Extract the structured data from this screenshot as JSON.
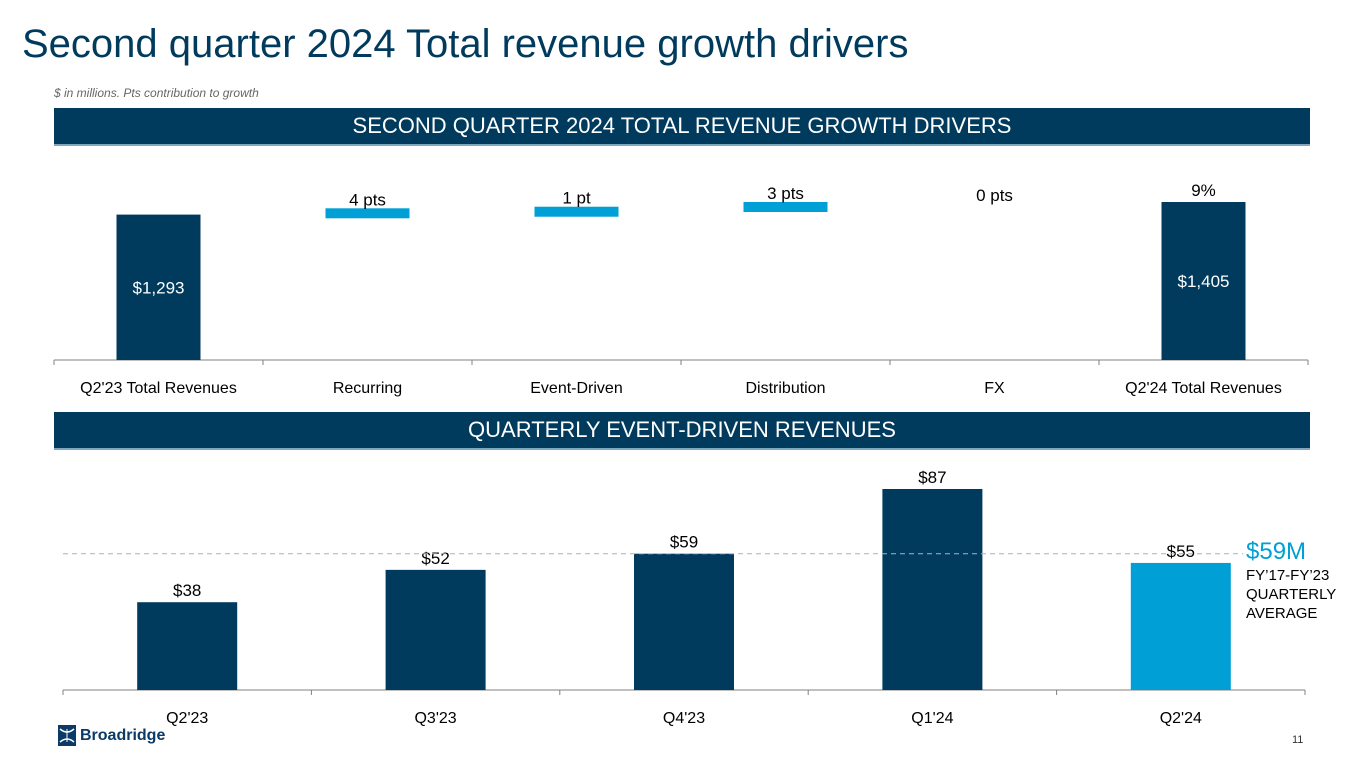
{
  "title": "Second quarter 2024 Total revenue growth drivers",
  "subtitle": "$ in millions. Pts contribution to growth",
  "colors": {
    "navy": "#003a5d",
    "light_blue": "#009fd6"
  },
  "chart_data": [
    {
      "type": "bar",
      "subtype": "waterfall",
      "title": "SECOND QUARTER 2024 TOTAL REVENUE GROWTH DRIVERS",
      "categories": [
        "Q2'23 Total Revenues",
        "Recurring",
        "Event-Driven",
        "Distribution",
        "FX",
        "Q2'24 Total Revenues"
      ],
      "values_usd_millions": [
        1293,
        null,
        null,
        null,
        null,
        1405
      ],
      "growth_pts": [
        null,
        4,
        1,
        3,
        0,
        null
      ],
      "total_growth_pct": 9,
      "labels": [
        "$1,293",
        "4 pts",
        "1 pt",
        "3 pts",
        "0 pts",
        "$1,405"
      ],
      "top_label_total": "9%",
      "bar_kinds": [
        "total",
        "increment",
        "increment",
        "increment",
        "increment",
        "total"
      ],
      "xlabel": "",
      "ylabel": "",
      "grid": false
    },
    {
      "type": "bar",
      "title": "QUARTERLY EVENT-DRIVEN REVENUES",
      "categories": [
        "Q2'23",
        "Q3'23",
        "Q4'23",
        "Q1'24",
        "Q2'24"
      ],
      "values": [
        38,
        52,
        59,
        87,
        55
      ],
      "labels": [
        "$38",
        "$52",
        "$59",
        "$87",
        "$55"
      ],
      "highlight_index": 4,
      "reference_line": {
        "value": 59,
        "style": "dashed"
      },
      "ylim": [
        0,
        90
      ],
      "xlabel": "",
      "ylabel": "",
      "grid": false
    }
  ],
  "banners": {
    "top": "SECOND QUARTER 2024 TOTAL REVENUE GROWTH DRIVERS",
    "bottom": "QUARTERLY EVENT-DRIVEN REVENUES"
  },
  "average_callout": {
    "value": "$59M",
    "line1": "FY’17-FY’23",
    "line2": "QUARTERLY",
    "line3": "AVERAGE"
  },
  "footer": {
    "logo_text": "Broadridge",
    "page_number": "11"
  }
}
